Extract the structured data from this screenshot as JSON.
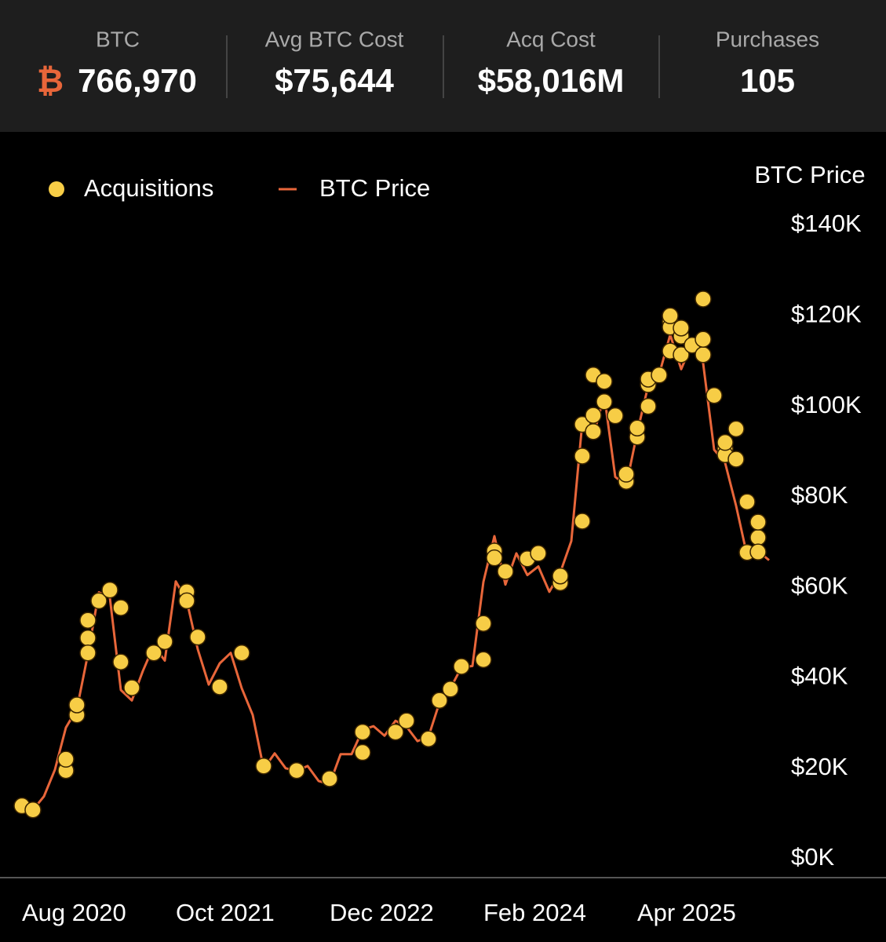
{
  "header": {
    "stats": [
      {
        "label": "BTC",
        "symbol": "₿",
        "value": "766,970"
      },
      {
        "label": "Avg BTC Cost",
        "value": "$75,644"
      },
      {
        "label": "Acq Cost",
        "value": "$58,016M"
      },
      {
        "label": "Purchases",
        "value": "105"
      }
    ]
  },
  "chart_data": {
    "type": "line",
    "y_axis_title": "BTC Price",
    "legend": "top-left",
    "xlim": [
      "2020-06",
      "2026-05"
    ],
    "xticks": [
      {
        "value": "2020-08",
        "label": "Aug 2020"
      },
      {
        "value": "2021-10",
        "label": "Oct 2021"
      },
      {
        "value": "2022-12",
        "label": "Dec 2022"
      },
      {
        "value": "2024-02",
        "label": "Feb 2024"
      },
      {
        "value": "2025-04",
        "label": "Apr 2025"
      }
    ],
    "ylim": [
      0,
      140000
    ],
    "yticks": [
      {
        "value": 0,
        "label": "$0K"
      },
      {
        "value": 20000,
        "label": "$20K"
      },
      {
        "value": 40000,
        "label": "$40K"
      },
      {
        "value": 60000,
        "label": "$60K"
      },
      {
        "value": 80000,
        "label": "$80K"
      },
      {
        "value": 100000,
        "label": "$100K"
      },
      {
        "value": 120000,
        "label": "$120K"
      },
      {
        "value": 140000,
        "label": "$140K"
      }
    ],
    "series": [
      {
        "name": "Acquisitions",
        "type": "scatter",
        "color": "#f7cd46",
        "x": [
          "2020-08",
          "2020-09",
          "2020-12",
          "2020-12",
          "2021-01",
          "2021-01",
          "2021-02",
          "2021-02",
          "2021-02",
          "2021-03",
          "2021-04",
          "2021-05",
          "2021-05",
          "2021-06",
          "2021-08",
          "2021-09",
          "2021-11",
          "2021-11",
          "2021-12",
          "2022-02",
          "2022-04",
          "2022-06",
          "2022-09",
          "2022-12",
          "2023-03",
          "2023-03",
          "2023-06",
          "2023-07",
          "2023-09",
          "2023-10",
          "2023-11",
          "2023-12",
          "2024-02",
          "2024-02",
          "2024-03",
          "2024-03",
          "2024-04",
          "2024-06",
          "2024-07",
          "2024-09",
          "2024-09",
          "2024-11",
          "2024-11",
          "2024-11",
          "2024-12",
          "2024-12",
          "2024-12",
          "2025-01",
          "2025-01",
          "2025-02",
          "2025-03",
          "2025-03",
          "2025-03",
          "2025-04",
          "2025-04",
          "2025-05",
          "2025-05",
          "2025-05",
          "2025-06",
          "2025-07",
          "2025-07",
          "2025-07",
          "2025-07",
          "2025-08",
          "2025-08",
          "2025-08",
          "2025-09",
          "2025-10",
          "2025-10",
          "2025-10",
          "2025-11",
          "2025-12",
          "2025-12",
          "2025-12",
          "2026-01",
          "2026-01",
          "2026-02",
          "2026-02",
          "2026-03",
          "2026-03",
          "2026-03"
        ],
        "values": [
          11700,
          10800,
          19500,
          22000,
          31800,
          34000,
          52700,
          48800,
          45500,
          57000,
          59400,
          55500,
          43500,
          37800,
          45500,
          48000,
          59000,
          57000,
          49000,
          38000,
          45500,
          20500,
          19500,
          17700,
          23500,
          28000,
          28000,
          30500,
          26500,
          35000,
          37500,
          42500,
          44000,
          52000,
          68000,
          66500,
          63500,
          66300,
          67500,
          61000,
          62500,
          74600,
          89000,
          96000,
          106900,
          98000,
          94400,
          101000,
          105500,
          97900,
          84800,
          83400,
          85000,
          93200,
          95200,
          100000,
          104800,
          106000,
          106900,
          112200,
          118700,
          117500,
          120000,
          115500,
          117300,
          111400,
          113500,
          123700,
          111400,
          114800,
          102400,
          90600,
          89300,
          92000,
          95000,
          88300,
          78900,
          67700,
          71000,
          74400,
          67800
        ]
      },
      {
        "name": "BTC Price",
        "type": "line",
        "color": "#e8663a",
        "x": [
          "2020-08",
          "2020-09",
          "2020-10",
          "2020-11",
          "2020-12",
          "2021-01",
          "2021-02",
          "2021-03",
          "2021-04",
          "2021-05",
          "2021-06",
          "2021-07",
          "2021-08",
          "2021-09",
          "2021-10",
          "2021-11",
          "2021-12",
          "2022-01",
          "2022-02",
          "2022-03",
          "2022-04",
          "2022-05",
          "2022-06",
          "2022-07",
          "2022-08",
          "2022-09",
          "2022-10",
          "2022-11",
          "2022-12",
          "2023-01",
          "2023-02",
          "2023-03",
          "2023-04",
          "2023-05",
          "2023-06",
          "2023-07",
          "2023-08",
          "2023-09",
          "2023-10",
          "2023-11",
          "2023-12",
          "2024-01",
          "2024-02",
          "2024-03",
          "2024-04",
          "2024-05",
          "2024-06",
          "2024-07",
          "2024-08",
          "2024-09",
          "2024-10",
          "2024-11",
          "2024-12",
          "2025-01",
          "2025-02",
          "2025-03",
          "2025-04",
          "2025-05",
          "2025-06",
          "2025-07",
          "2025-08",
          "2025-09",
          "2025-10",
          "2025-11",
          "2025-12",
          "2026-01",
          "2026-02",
          "2026-03",
          "2026-04"
        ],
        "values": [
          11700,
          10800,
          13800,
          19700,
          29000,
          33100,
          45200,
          58900,
          57700,
          37300,
          35000,
          41500,
          47100,
          43800,
          61300,
          57000,
          46300,
          38500,
          43200,
          45500,
          37700,
          31800,
          19900,
          23300,
          20000,
          19400,
          20500,
          17200,
          16500,
          23100,
          23100,
          28500,
          29300,
          27200,
          30500,
          29200,
          26000,
          27000,
          34500,
          37700,
          42300,
          42600,
          61200,
          71300,
          60600,
          67500,
          62700,
          64600,
          59000,
          63300,
          70200,
          96400,
          93400,
          102400,
          84400,
          82500,
          94200,
          104600,
          107100,
          115800,
          108200,
          114000,
          109500,
          90400,
          87500,
          78000,
          67000,
          68000,
          66000
        ]
      }
    ]
  }
}
